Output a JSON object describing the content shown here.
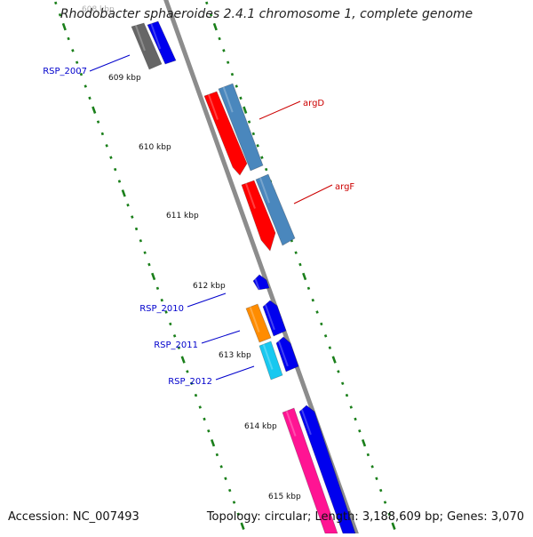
{
  "title": "Rhodobacter sphaeroides 2.4.1 chromosome 1, complete genome",
  "footer": {
    "accession_label": "Accession:",
    "accession": "NC_007493",
    "topology_label": "Topology:",
    "topology": "circular",
    "length_label": "Length:",
    "length": "3,188,609 bp",
    "genes_label": "Genes:",
    "genes": "3,070"
  },
  "ticks": [
    {
      "label": "608 kbp"
    },
    {
      "label": "609 kbp"
    },
    {
      "label": "610 kbp"
    },
    {
      "label": "611 kbp"
    },
    {
      "label": "612 kbp"
    },
    {
      "label": "613 kbp"
    },
    {
      "label": "614 kbp"
    },
    {
      "label": "615 kbp"
    }
  ],
  "gene_labels": [
    {
      "label": "RSP_2007",
      "color": "#0000cc"
    },
    {
      "label": "argD",
      "color": "#cc0000"
    },
    {
      "label": "argF",
      "color": "#cc0000"
    },
    {
      "label": "RSP_2010",
      "color": "#0000cc"
    },
    {
      "label": "RSP_2011",
      "color": "#0000cc"
    },
    {
      "label": "RSP_2012",
      "color": "#0000cc"
    }
  ],
  "colors": {
    "backbone": "#8c8c8c",
    "tick_green": "#1a7f1a",
    "cds_blue": "#0000ee",
    "gene_gray": "#666666",
    "gene_red": "#ff0000",
    "gene_steelblue": "#4a87bd",
    "gene_orange": "#ff8c00",
    "gene_cyan": "#18c8f0",
    "gene_pink": "#ff1493"
  }
}
